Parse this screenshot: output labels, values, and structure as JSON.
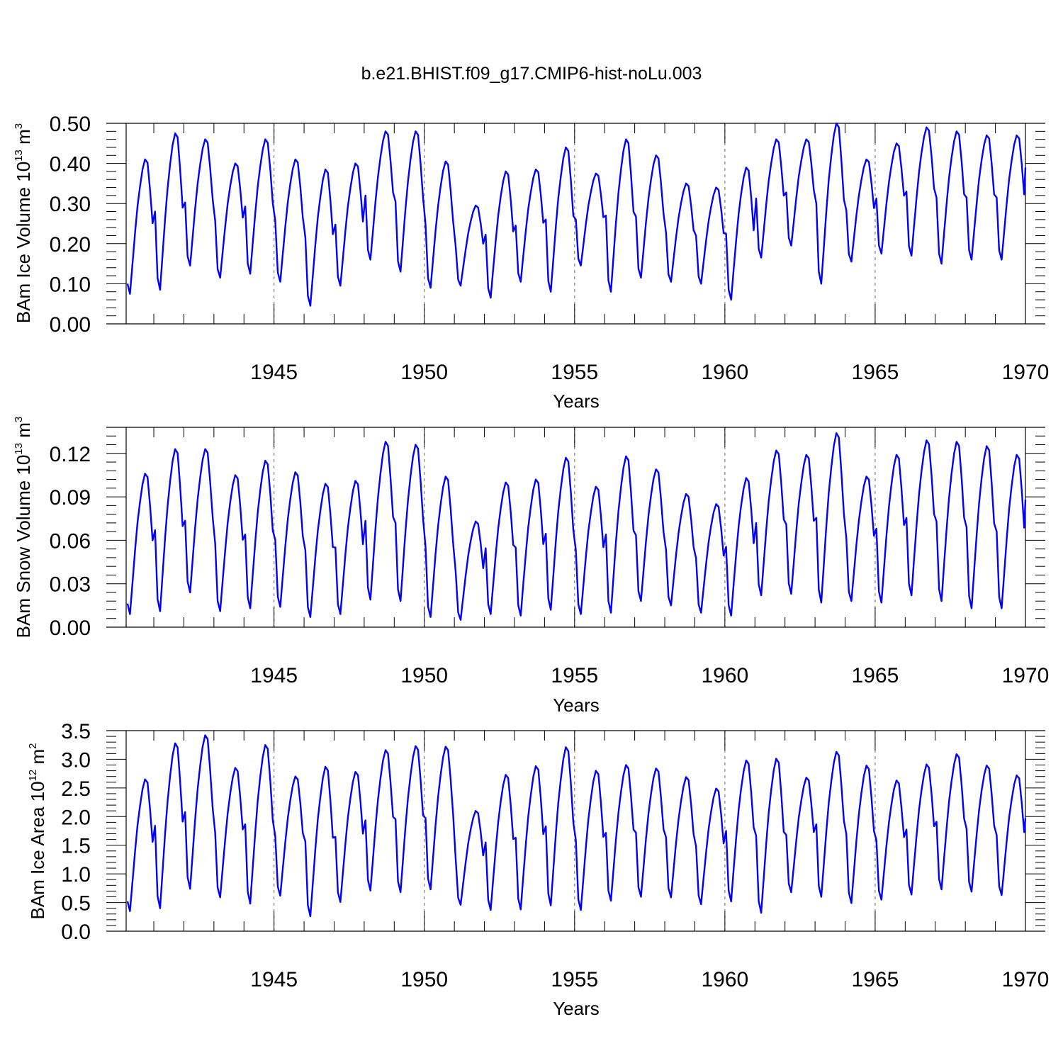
{
  "figure": {
    "title": "b.e21.BHIST.f09_g17.CMIP6-hist-noLu.003"
  },
  "colors": {
    "series": "#0000ff",
    "axis": "#000000",
    "gridline": "#808080"
  },
  "chart_data": [
    {
      "type": "line",
      "name": "ice-volume",
      "xlabel": "Years",
      "ylabel": {
        "main": "BAm Ice Volume 10",
        "exp": "13",
        "unit": " m",
        "unit_exp": "3"
      },
      "xlim": [
        1940.08,
        1970.0
      ],
      "ylim": [
        0.0,
        0.5
      ],
      "x_ticks": [
        1945,
        1950,
        1955,
        1960,
        1965,
        1970
      ],
      "x_tick_labels": [
        "1945",
        "1950",
        "1955",
        "1960",
        "1965",
        "1970"
      ],
      "y_ticks": [
        0.0,
        0.1,
        0.2,
        0.3,
        0.4,
        0.5
      ],
      "y_tick_labels": [
        "0.00",
        "0.10",
        "0.20",
        "0.30",
        "0.40",
        "0.50"
      ],
      "cycle": {
        "start_year": 1940,
        "base": 0.1,
        "peaks": [
          0.41,
          0.475,
          0.46,
          0.4,
          0.46,
          0.41,
          0.385,
          0.4,
          0.48,
          0.48,
          0.405,
          0.295,
          0.38,
          0.385,
          0.44,
          0.375,
          0.46,
          0.42,
          0.35,
          0.34,
          0.39,
          0.46,
          0.46,
          0.5,
          0.41,
          0.45,
          0.49,
          0.48,
          0.47,
          0.47
        ],
        "troughs": [
          0.075,
          0.085,
          0.145,
          0.115,
          0.125,
          0.105,
          0.045,
          0.095,
          0.16,
          0.13,
          0.09,
          0.095,
          0.065,
          0.105,
          0.08,
          0.145,
          0.08,
          0.115,
          0.105,
          0.1,
          0.06,
          0.165,
          0.195,
          0.1,
          0.155,
          0.175,
          0.17,
          0.15,
          0.16,
          0.16
        ],
        "end_value": 0.39
      }
    },
    {
      "type": "line",
      "name": "snow-volume",
      "xlabel": "Years",
      "ylabel": {
        "main": "BAm Snow Volume 10",
        "exp": "13",
        "unit": " m",
        "unit_exp": "3"
      },
      "xlim": [
        1940.08,
        1970.0
      ],
      "ylim": [
        0.0,
        0.138
      ],
      "x_ticks": [
        1945,
        1950,
        1955,
        1960,
        1965,
        1970
      ],
      "x_tick_labels": [
        "1945",
        "1950",
        "1955",
        "1960",
        "1965",
        "1970"
      ],
      "y_ticks": [
        0.0,
        0.03,
        0.06,
        0.09,
        0.12
      ],
      "y_tick_labels": [
        "0.00",
        "0.03",
        "0.06",
        "0.09",
        "0.12"
      ],
      "cycle": {
        "start_year": 1940,
        "base": 0.018,
        "peaks": [
          0.106,
          0.123,
          0.123,
          0.105,
          0.115,
          0.107,
          0.099,
          0.101,
          0.128,
          0.126,
          0.104,
          0.073,
          0.1,
          0.102,
          0.117,
          0.097,
          0.118,
          0.109,
          0.092,
          0.085,
          0.103,
          0.122,
          0.119,
          0.134,
          0.104,
          0.119,
          0.129,
          0.128,
          0.125,
          0.119
        ],
        "troughs": [
          0.009,
          0.011,
          0.024,
          0.011,
          0.013,
          0.014,
          0.007,
          0.009,
          0.019,
          0.018,
          0.007,
          0.005,
          0.009,
          0.008,
          0.012,
          0.009,
          0.01,
          0.018,
          0.015,
          0.01,
          0.008,
          0.022,
          0.023,
          0.017,
          0.018,
          0.017,
          0.022,
          0.018,
          0.013,
          0.013
        ],
        "end_value": 0.088
      }
    },
    {
      "type": "line",
      "name": "ice-area",
      "xlabel": "Years",
      "ylabel": {
        "main": "BAm Ice Area 10",
        "exp": "12",
        "unit": " m",
        "unit_exp": "2"
      },
      "xlim": [
        1940.08,
        1970.0
      ],
      "ylim": [
        0.0,
        3.5
      ],
      "x_ticks": [
        1945,
        1950,
        1955,
        1960,
        1965,
        1970
      ],
      "x_tick_labels": [
        "1945",
        "1950",
        "1955",
        "1960",
        "1965",
        "1970"
      ],
      "y_ticks": [
        0.0,
        0.5,
        1.0,
        1.5,
        2.0,
        2.5,
        3.0,
        3.5
      ],
      "y_tick_labels": [
        "0.0",
        "0.5",
        "1.0",
        "1.5",
        "2.0",
        "2.5",
        "3.0",
        "3.5"
      ],
      "cycle": {
        "start_year": 1940,
        "base": 0.75,
        "peaks": [
          2.65,
          3.28,
          3.42,
          2.85,
          3.25,
          2.7,
          2.87,
          2.78,
          3.16,
          3.23,
          3.22,
          2.1,
          2.73,
          2.88,
          3.21,
          2.8,
          2.9,
          2.84,
          2.69,
          2.49,
          2.98,
          3.01,
          2.68,
          3.13,
          2.89,
          2.63,
          2.91,
          3.09,
          2.89,
          2.72
        ],
        "troughs": [
          0.35,
          0.4,
          0.74,
          0.59,
          0.48,
          0.62,
          0.26,
          0.51,
          0.71,
          0.68,
          0.73,
          0.46,
          0.37,
          0.38,
          0.45,
          0.37,
          0.53,
          0.6,
          0.59,
          0.47,
          0.52,
          0.32,
          0.68,
          0.6,
          0.49,
          0.55,
          0.64,
          0.73,
          0.69,
          0.63
        ],
        "end_value": 1.97
      }
    }
  ]
}
